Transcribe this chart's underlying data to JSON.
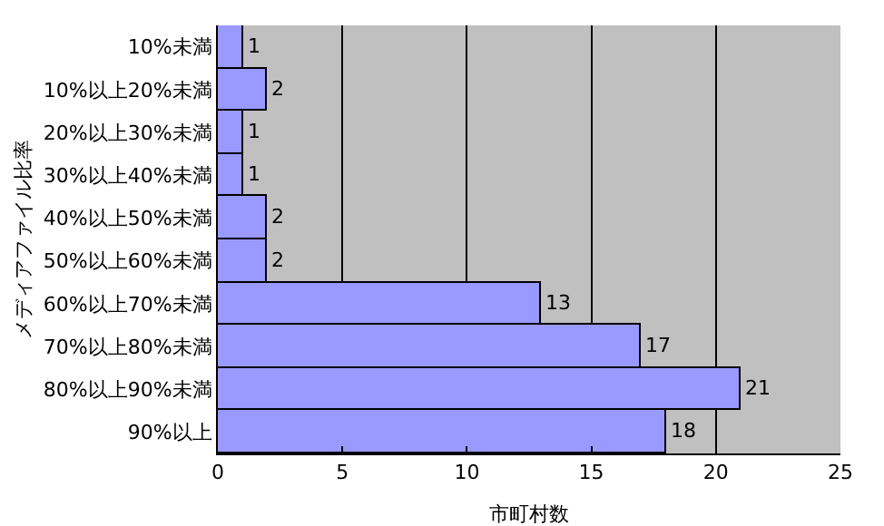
{
  "chart_data": {
    "type": "bar",
    "orientation": "horizontal",
    "xlabel": "市町村数",
    "ylabel": "メディアファイル比率",
    "categories": [
      "10%未満",
      "10%以上20%未満",
      "20%以上30%未満",
      "30%以上40%未満",
      "40%以上50%未満",
      "50%以上60%未満",
      "60%以上70%未満",
      "70%以上80%未満",
      "80%以上90%未満",
      "90%以上"
    ],
    "values": [
      1,
      2,
      1,
      1,
      2,
      2,
      13,
      17,
      21,
      18
    ],
    "color": "#9999ff",
    "xlim": [
      0,
      25
    ],
    "xticks": [
      0,
      5,
      10,
      15,
      20,
      25
    ],
    "grid": "x",
    "data_labels": true
  }
}
